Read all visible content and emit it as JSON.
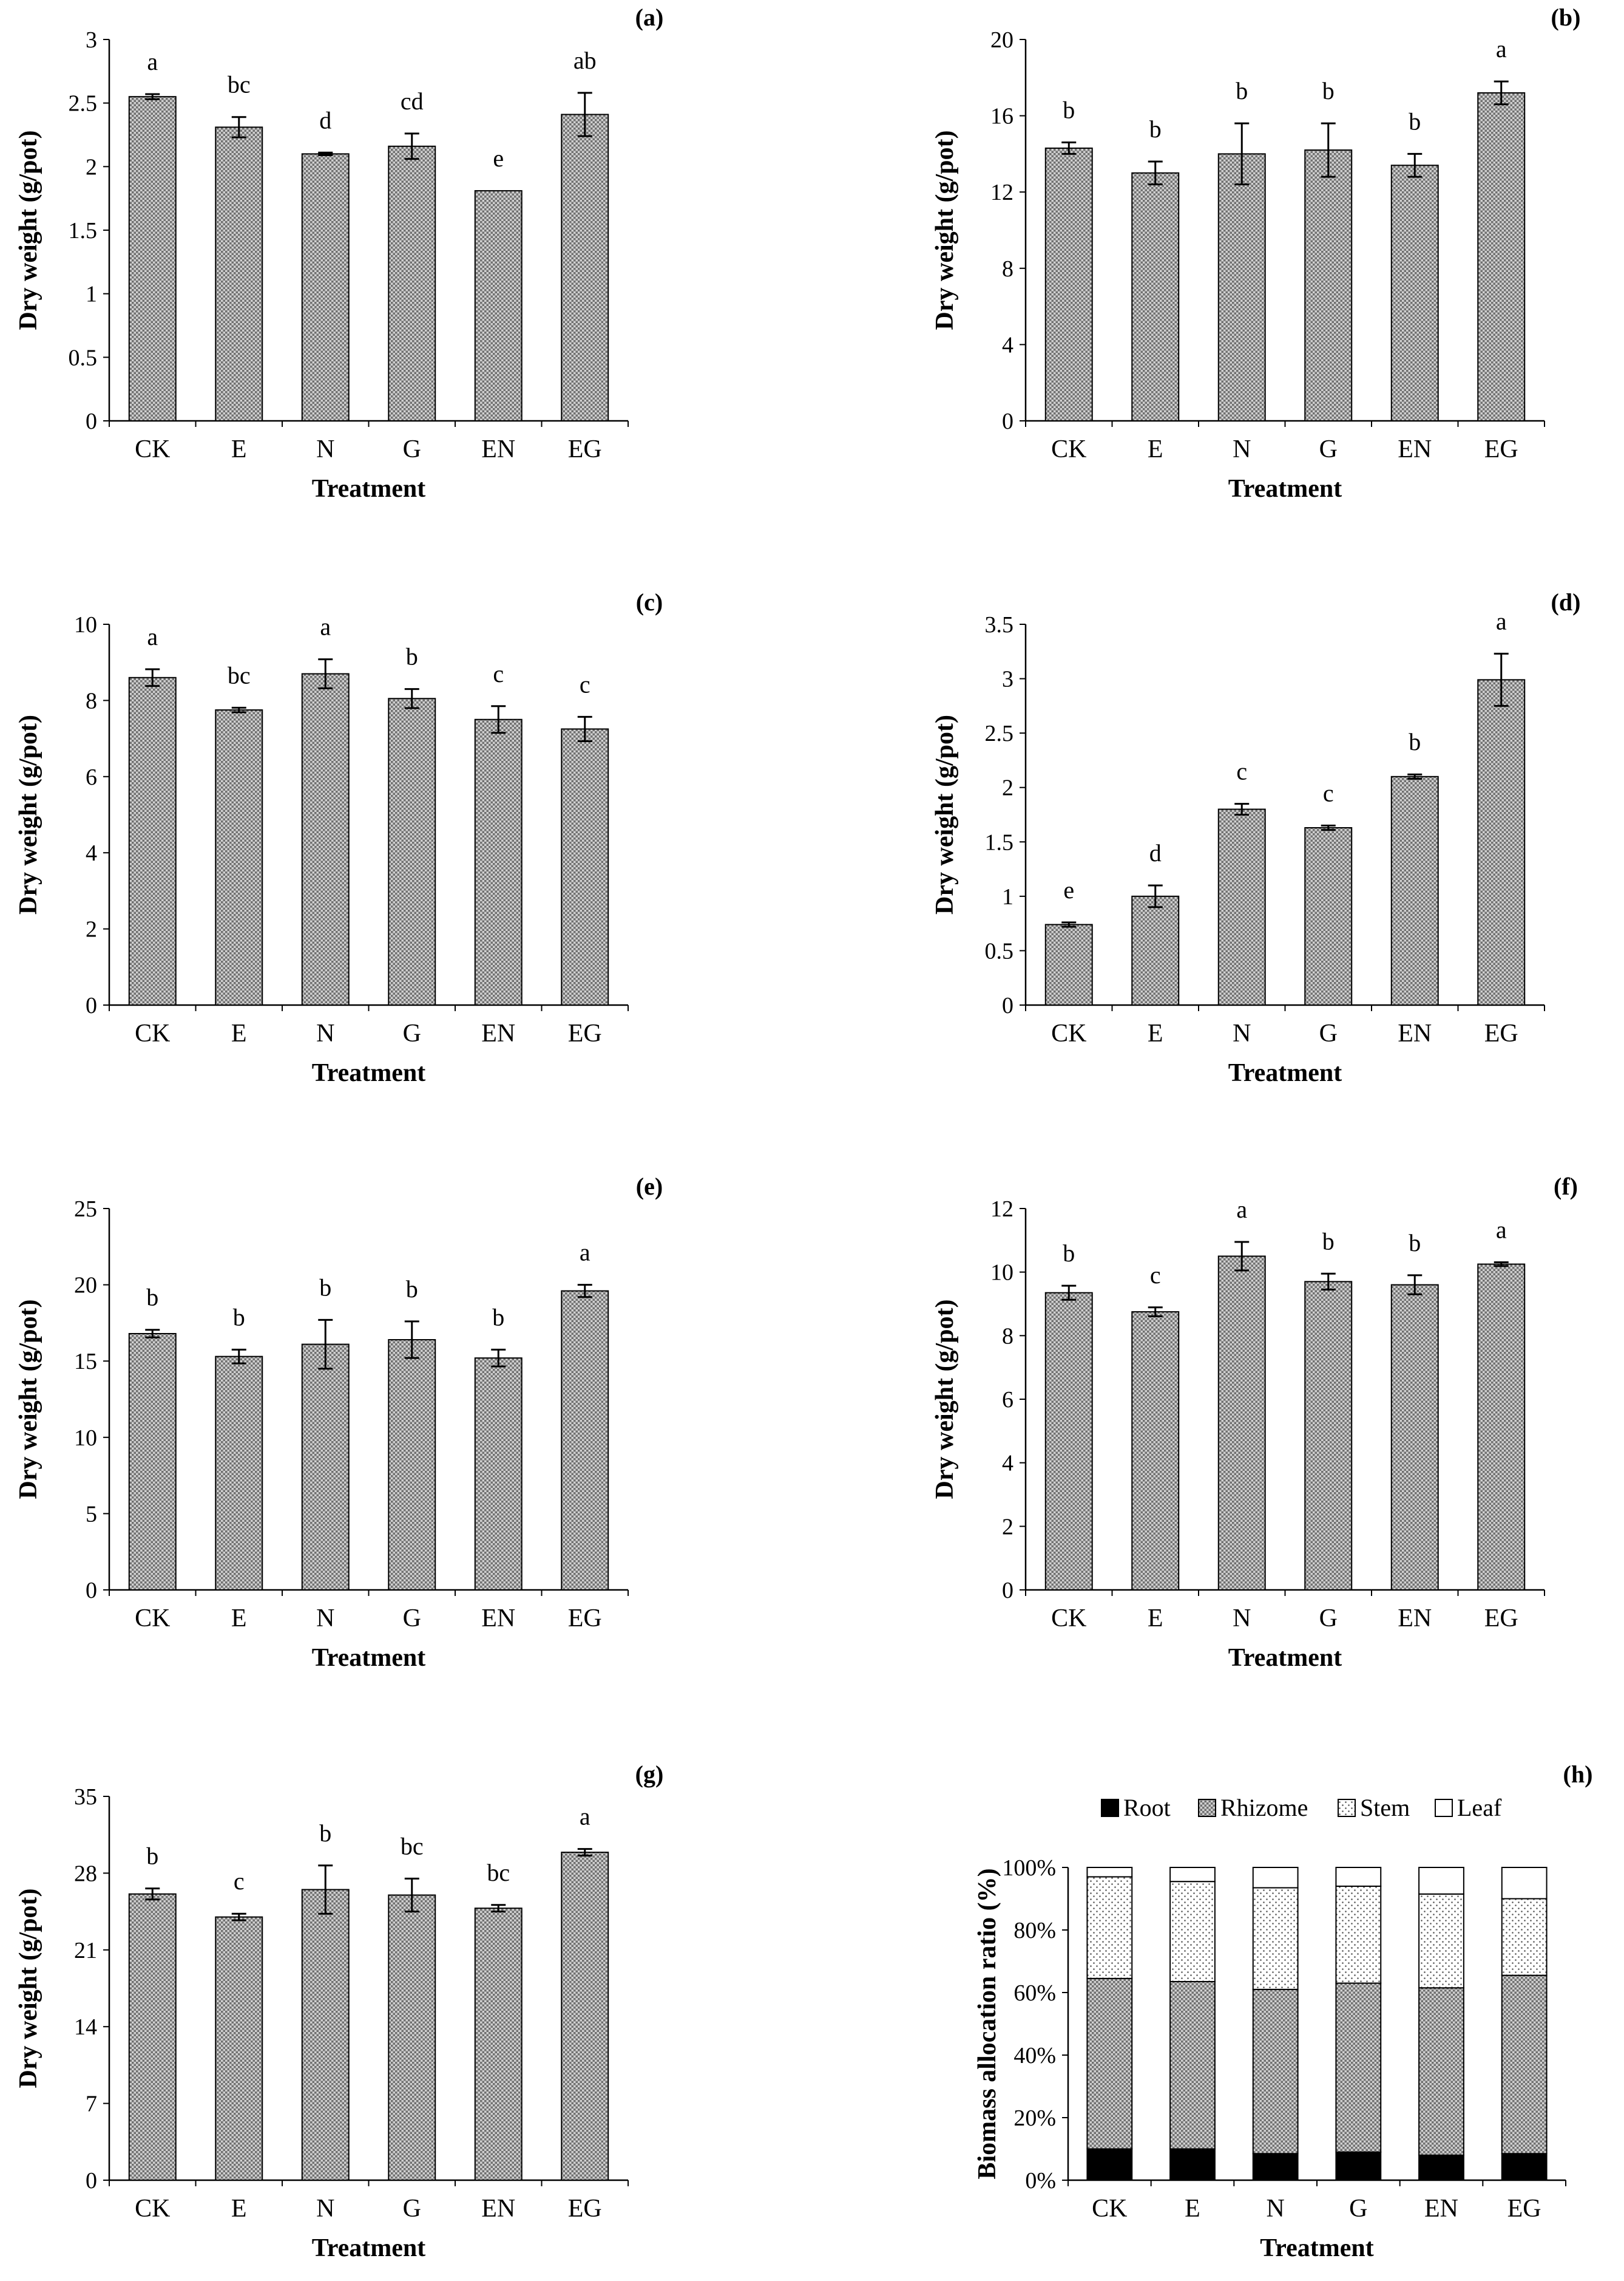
{
  "figure": {
    "panels": [
      "(a)",
      "(b)",
      "(c)",
      "(d)",
      "(e)",
      "(f)",
      "(g)",
      "(h)"
    ]
  },
  "colors": {
    "bar_fill": "#b8b8b8",
    "bar_stroke": "#000000",
    "root": "#000000",
    "leaf": "#ffffff"
  },
  "chart_data": [
    {
      "panel": "(a)",
      "type": "bar",
      "title": "",
      "xlabel": "Treatment",
      "ylabel": "Dry weight (g/pot)",
      "categories": [
        "CK",
        "E",
        "N",
        "G",
        "EN",
        "EG"
      ],
      "values": [
        2.55,
        2.31,
        2.1,
        2.16,
        1.81,
        2.41
      ],
      "errors": [
        0.02,
        0.08,
        0.01,
        0.1,
        0.0,
        0.17
      ],
      "letters": [
        "a",
        "bc",
        "d",
        "cd",
        "e",
        "ab"
      ],
      "ylim": [
        0,
        3
      ],
      "yticks": [
        "0",
        "0.5",
        "1",
        "1.5",
        "2",
        "2.5",
        "3"
      ]
    },
    {
      "panel": "(b)",
      "type": "bar",
      "title": "",
      "xlabel": "Treatment",
      "ylabel": "Dry weight (g/pot)",
      "categories": [
        "CK",
        "E",
        "N",
        "G",
        "EN",
        "EG"
      ],
      "values": [
        14.3,
        13.0,
        14.0,
        14.2,
        13.4,
        17.2
      ],
      "errors": [
        0.3,
        0.6,
        1.6,
        1.4,
        0.6,
        0.6
      ],
      "letters": [
        "b",
        "b",
        "b",
        "b",
        "b",
        "a"
      ],
      "ylim": [
        0,
        20
      ],
      "yticks": [
        "0",
        "4",
        "8",
        "12",
        "16",
        "20"
      ]
    },
    {
      "panel": "(c)",
      "type": "bar",
      "title": "",
      "xlabel": "Treatment",
      "ylabel": "Dry weight (g/pot)",
      "categories": [
        "CK",
        "E",
        "N",
        "G",
        "EN",
        "EG"
      ],
      "values": [
        8.6,
        7.75,
        8.7,
        8.05,
        7.5,
        7.25
      ],
      "errors": [
        0.22,
        0.06,
        0.38,
        0.25,
        0.35,
        0.32
      ],
      "letters": [
        "a",
        "bc",
        "a",
        "b",
        "c",
        "c"
      ],
      "ylim": [
        0,
        10
      ],
      "yticks": [
        "0",
        "2",
        "4",
        "6",
        "8",
        "10"
      ]
    },
    {
      "panel": "(d)",
      "type": "bar",
      "title": "",
      "xlabel": "Treatment",
      "ylabel": "Dry weight (g/pot)",
      "categories": [
        "CK",
        "E",
        "N",
        "G",
        "EN",
        "EG"
      ],
      "values": [
        0.74,
        1.0,
        1.8,
        1.63,
        2.1,
        2.99
      ],
      "errors": [
        0.02,
        0.1,
        0.05,
        0.02,
        0.02,
        0.24
      ],
      "letters": [
        "e",
        "d",
        "c",
        "c",
        "b",
        "a"
      ],
      "ylim": [
        0,
        3.5
      ],
      "yticks": [
        "0",
        "0.5",
        "1",
        "1.5",
        "2",
        "2.5",
        "3",
        "3.5"
      ]
    },
    {
      "panel": "(e)",
      "type": "bar",
      "title": "",
      "xlabel": "Treatment",
      "ylabel": "Dry weight (g/pot)",
      "categories": [
        "CK",
        "E",
        "N",
        "G",
        "EN",
        "EG"
      ],
      "values": [
        16.8,
        15.3,
        16.1,
        16.4,
        15.2,
        19.6
      ],
      "errors": [
        0.25,
        0.45,
        1.6,
        1.2,
        0.55,
        0.4
      ],
      "letters": [
        "b",
        "b",
        "b",
        "b",
        "b",
        "a"
      ],
      "ylim": [
        0,
        25
      ],
      "yticks": [
        "0",
        "5",
        "10",
        "15",
        "20",
        "25"
      ]
    },
    {
      "panel": "(f)",
      "type": "bar",
      "title": "",
      "xlabel": "Treatment",
      "ylabel": "Dry weight (g/pot)",
      "categories": [
        "CK",
        "E",
        "N",
        "G",
        "EN",
        "EG"
      ],
      "values": [
        9.35,
        8.75,
        10.5,
        9.7,
        9.6,
        10.25
      ],
      "errors": [
        0.22,
        0.14,
        0.45,
        0.25,
        0.3,
        0.06
      ],
      "letters": [
        "b",
        "c",
        "a",
        "b",
        "b",
        "a"
      ],
      "ylim": [
        0,
        12
      ],
      "yticks": [
        "0",
        "2",
        "4",
        "6",
        "8",
        "10",
        "12"
      ]
    },
    {
      "panel": "(g)",
      "type": "bar",
      "title": "",
      "xlabel": "Treatment",
      "ylabel": "Dry weight (g/pot)",
      "categories": [
        "CK",
        "E",
        "N",
        "G",
        "EN",
        "EG"
      ],
      "values": [
        26.1,
        24.0,
        26.5,
        26.0,
        24.8,
        29.9
      ],
      "errors": [
        0.5,
        0.3,
        2.2,
        1.5,
        0.3,
        0.3
      ],
      "letters": [
        "b",
        "c",
        "b",
        "bc",
        "bc",
        "a"
      ],
      "ylim": [
        0,
        35
      ],
      "yticks": [
        "0",
        "7",
        "14",
        "21",
        "28",
        "35"
      ]
    },
    {
      "panel": "(h)",
      "type": "bar",
      "stacked": true,
      "title": "",
      "xlabel": "Treatment",
      "ylabel": "Biomass allocation ratio (%)",
      "categories": [
        "CK",
        "E",
        "N",
        "G",
        "EN",
        "EG"
      ],
      "series": [
        {
          "name": "Root",
          "values": [
            10,
            10,
            8.5,
            9,
            8,
            8.5
          ]
        },
        {
          "name": "Rhizome",
          "values": [
            54.5,
            53.5,
            52.5,
            54,
            53.5,
            57
          ]
        },
        {
          "name": "Stem",
          "values": [
            32.5,
            32,
            32.5,
            31,
            30,
            24.5
          ]
        },
        {
          "name": "Leaf",
          "values": [
            3,
            4.5,
            6.5,
            6,
            8.5,
            10
          ]
        }
      ],
      "ylim": [
        0,
        100
      ],
      "yticks": [
        "0%",
        "20%",
        "40%",
        "60%",
        "80%",
        "100%"
      ],
      "legend_position": "top"
    }
  ]
}
